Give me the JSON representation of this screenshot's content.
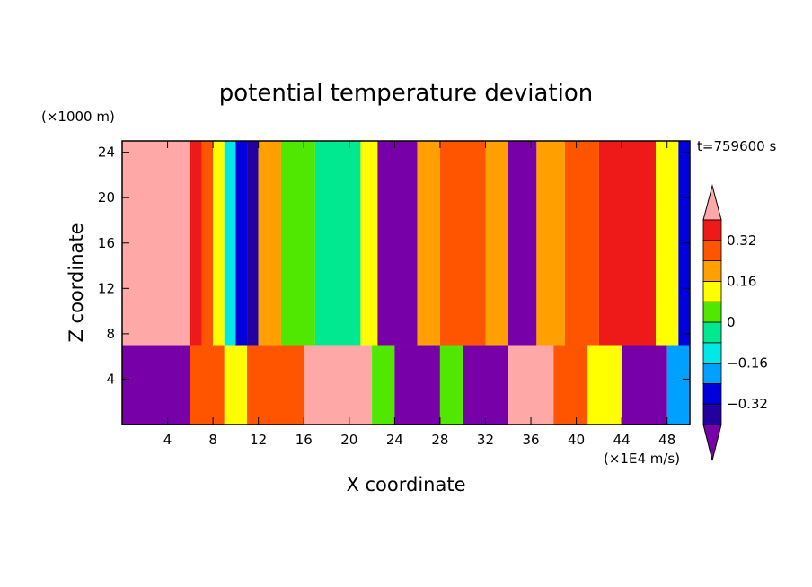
{
  "chart_data": {
    "type": "heatmap",
    "title": "potential temperature deviation",
    "xlabel": "X coordinate",
    "ylabel": "Z coordinate",
    "x_units": "(×1E4 m/s)",
    "y_units": "(×1000 m)",
    "time_label": "t=759600 s",
    "xlim": [
      0,
      50
    ],
    "ylim": [
      0,
      25
    ],
    "x_ticks": [
      4,
      8,
      12,
      16,
      20,
      24,
      28,
      32,
      36,
      40,
      44,
      48
    ],
    "x_tick_labels": [
      "4",
      "8",
      "12",
      "16",
      "20",
      "24",
      "28",
      "32",
      "36",
      "40",
      "44",
      "48"
    ],
    "y_ticks": [
      4,
      8,
      12,
      16,
      20,
      24
    ],
    "y_tick_labels": [
      "4",
      "8",
      "12",
      "16",
      "20",
      "24"
    ],
    "colorbar": {
      "levels": [
        -0.4,
        -0.32,
        -0.24,
        -0.16,
        -0.08,
        0,
        0.08,
        0.16,
        0.24,
        0.32,
        0.4
      ],
      "colors": [
        "#7800a8",
        "#2300a0",
        "#0000dc",
        "#00a0ff",
        "#00e8e8",
        "#00e890",
        "#50e800",
        "#ffff00",
        "#ffa000",
        "#ff5500",
        "#ee1a1a",
        "#ffa8a8"
      ],
      "tick_values": [
        0.32,
        0.16,
        0,
        -0.16,
        -0.32
      ],
      "tick_labels": [
        "0.32",
        "0.16",
        "0",
        "−0.16",
        "−0.32"
      ]
    },
    "inversion_height": 7,
    "upper_bands": [
      {
        "x0": 0,
        "x1": 6,
        "value": 0.46
      },
      {
        "x0": 6,
        "x1": 7,
        "value": 0.36
      },
      {
        "x0": 7,
        "x1": 8,
        "value": 0.28
      },
      {
        "x0": 8,
        "x1": 9,
        "value": 0.1
      },
      {
        "x0": 9,
        "x1": 10,
        "value": -0.12
      },
      {
        "x0": 10,
        "x1": 11,
        "value": -0.3
      },
      {
        "x0": 11,
        "x1": 12,
        "value": -0.4
      },
      {
        "x0": 12,
        "x1": 14,
        "value": 0.18
      },
      {
        "x0": 14,
        "x1": 17,
        "value": 0.06
      },
      {
        "x0": 17,
        "x1": 21,
        "value": -0.02
      },
      {
        "x0": 21,
        "x1": 22.5,
        "value": 0.1
      },
      {
        "x0": 22.5,
        "x1": 26,
        "value": -0.44
      },
      {
        "x0": 26,
        "x1": 28,
        "value": 0.2
      },
      {
        "x0": 28,
        "x1": 32,
        "value": 0.3
      },
      {
        "x0": 32,
        "x1": 34,
        "value": 0.18
      },
      {
        "x0": 34,
        "x1": 36.5,
        "value": -0.44
      },
      {
        "x0": 36.5,
        "x1": 39,
        "value": 0.18
      },
      {
        "x0": 39,
        "x1": 42,
        "value": 0.24
      },
      {
        "x0": 42,
        "x1": 47,
        "value": 0.34
      },
      {
        "x0": 47,
        "x1": 49,
        "value": 0.1
      },
      {
        "x0": 49,
        "x1": 50,
        "value": -0.3
      }
    ],
    "lower_bands": [
      {
        "x0": 0,
        "x1": 6,
        "value": -0.44
      },
      {
        "x0": 6,
        "x1": 9,
        "value": 0.3
      },
      {
        "x0": 9,
        "x1": 11,
        "value": 0.14
      },
      {
        "x0": 11,
        "x1": 16,
        "value": 0.26
      },
      {
        "x0": 16,
        "x1": 22,
        "value": 0.44
      },
      {
        "x0": 22,
        "x1": 24,
        "value": 0.06
      },
      {
        "x0": 24,
        "x1": 28,
        "value": -0.44
      },
      {
        "x0": 28,
        "x1": 30,
        "value": 0.02
      },
      {
        "x0": 30,
        "x1": 34,
        "value": -0.44
      },
      {
        "x0": 34,
        "x1": 38,
        "value": 0.44
      },
      {
        "x0": 38,
        "x1": 41,
        "value": 0.26
      },
      {
        "x0": 41,
        "x1": 44,
        "value": 0.1
      },
      {
        "x0": 44,
        "x1": 48,
        "value": -0.44
      },
      {
        "x0": 48,
        "x1": 50,
        "value": -0.2
      }
    ]
  }
}
